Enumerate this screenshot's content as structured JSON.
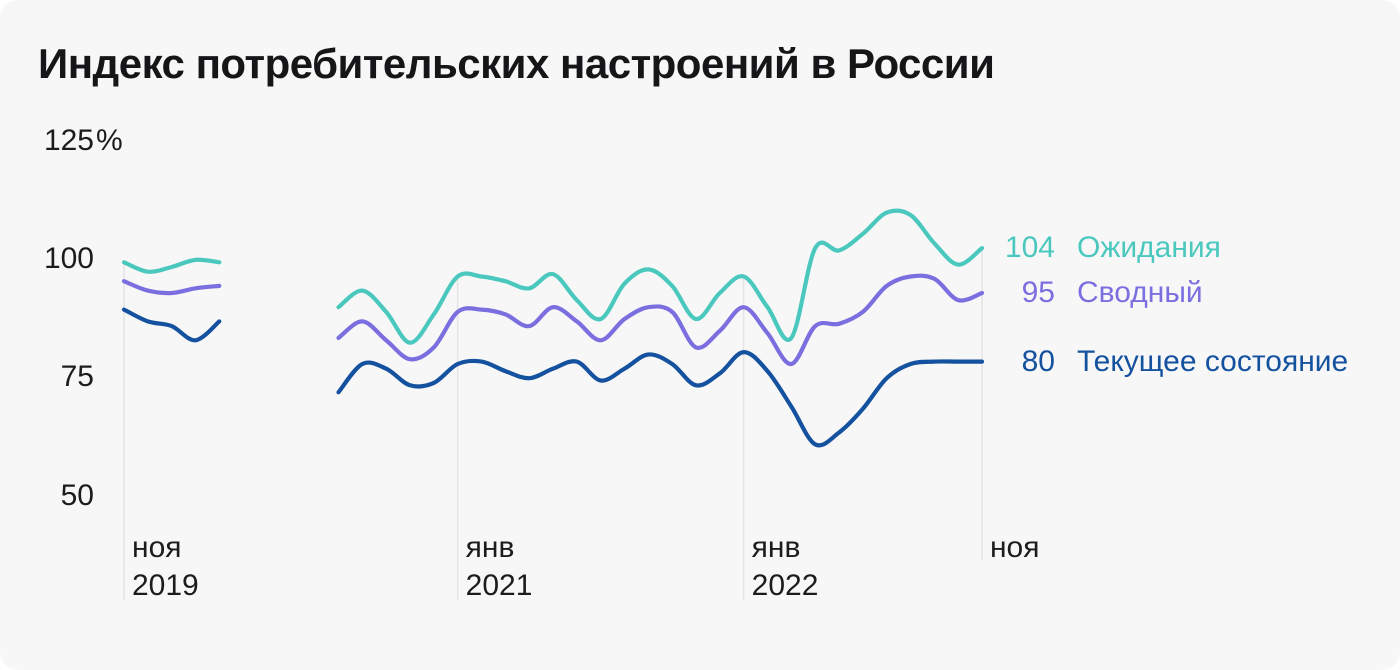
{
  "chart_data": {
    "type": "line",
    "title": "Индекс потребительских настроений в России",
    "background_color": "#F7F7F8",
    "gridline_color": "#E4E4E7",
    "text_color": "#1C1C1E",
    "legend_position": "right",
    "y_axis": {
      "range_shown": [
        50,
        125
      ],
      "ticks": [
        {
          "label": "125",
          "suffix": "%",
          "value": 125
        },
        {
          "label": "100",
          "suffix": "",
          "value": 100
        },
        {
          "label": "75",
          "suffix": "",
          "value": 75
        },
        {
          "label": "50",
          "suffix": "",
          "value": 50
        }
      ]
    },
    "x_axis": {
      "start_month": "2019-11",
      "end_month": "2022-11",
      "ticks": [
        {
          "month": "ноя",
          "year": "2019",
          "index": 0
        },
        {
          "month": "янв",
          "year": "2021",
          "index": 14
        },
        {
          "month": "янв",
          "year": "2022",
          "index": 26
        },
        {
          "month": "ноя",
          "year": "",
          "index": 36
        }
      ]
    },
    "series": [
      {
        "key": "expectations",
        "name": "Ожидания",
        "end_label": "104",
        "color": "#4BC8BE",
        "segments": [
          {
            "start": 0,
            "values": [
              101,
              99,
              100,
              101.5,
              101
            ]
          },
          {
            "start": 9,
            "values": [
              91.5,
              95,
              90.5,
              84,
              90,
              98,
              98,
              97,
              95.5,
              98.5,
              93,
              89,
              96.5,
              99.5,
              96,
              89,
              94.5,
              98,
              91.5,
              85,
              104,
              103.5,
              107,
              111.5,
              111,
              105,
              100.5,
              104
            ]
          }
        ]
      },
      {
        "key": "composite",
        "name": "Сводный",
        "end_label": "95",
        "color": "#7B6FE0",
        "segments": [
          {
            "start": 0,
            "values": [
              97,
              95,
              94.5,
              95.5,
              96
            ]
          },
          {
            "start": 9,
            "values": [
              85,
              88.5,
              84.5,
              80.5,
              83,
              90.5,
              91,
              90,
              87.5,
              91.5,
              88.5,
              84.5,
              89,
              91.5,
              90.5,
              83,
              86.5,
              91.5,
              86,
              79.5,
              87.5,
              88,
              90.5,
              96,
              98,
              97.5,
              93,
              94.5
            ]
          }
        ]
      },
      {
        "key": "current-state",
        "name": "Текущее состояние",
        "end_label": "80",
        "color": "#14519E",
        "segments": [
          {
            "start": 0,
            "values": [
              91,
              88.5,
              87.5,
              84.5,
              88.5
            ]
          },
          {
            "start": 9,
            "values": [
              73.5,
              79.5,
              78.5,
              75,
              75.5,
              79.5,
              80,
              78,
              76.5,
              78.5,
              80,
              76,
              78.5,
              81.5,
              79.5,
              75,
              77.5,
              82,
              78,
              70.5,
              62.5,
              65,
              70,
              76.5,
              79.5,
              80,
              80,
              80
            ]
          }
        ]
      }
    ]
  }
}
